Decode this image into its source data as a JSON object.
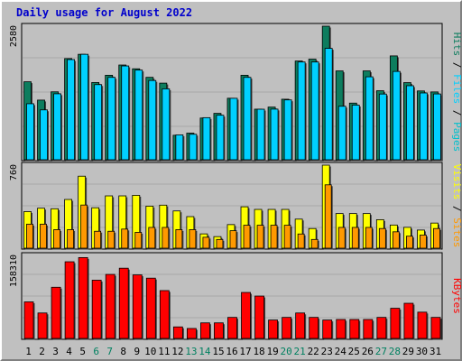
{
  "title": "Daily usage for August 2022",
  "colors": {
    "frame_bg": "#c0c0c0",
    "title": "#0000cc",
    "hits": "#0d7d5e",
    "files": "#00d0ff",
    "pages": "#00c0cc",
    "visits": "#ffff00",
    "sites": "#ff9900",
    "kbytes": "#ff0000",
    "day_weekday": "#000000",
    "day_weekend": "#008060"
  },
  "chart_data": [
    {
      "type": "bar",
      "name": "hits-files-pages",
      "categories": [
        "1",
        "2",
        "3",
        "4",
        "5",
        "6",
        "7",
        "8",
        "9",
        "10",
        "11",
        "12",
        "13",
        "14",
        "15",
        "16",
        "17",
        "18",
        "19",
        "20",
        "21",
        "22",
        "23",
        "24",
        "25",
        "26",
        "27",
        "28",
        "29",
        "30",
        "31"
      ],
      "weekend_days": [
        "6",
        "7",
        "13",
        "14",
        "20",
        "21",
        "27",
        "28"
      ],
      "ymax_label": "2580",
      "ylim": [
        0,
        2580
      ],
      "series": [
        {
          "name": "Hits",
          "values": [
            1506,
            1152,
            1312,
            1954,
            2037,
            1492,
            1632,
            1830,
            1757,
            1592,
            1480,
            473,
            514,
            806,
            896,
            1188,
            1632,
            977,
            1017,
            1169,
            1907,
            1943,
            2580,
            1716,
            1094,
            1716,
            1333,
            2006,
            1490,
            1329,
            1310
          ]
        },
        {
          "name": "Files",
          "values": [
            1082,
            963,
            1274,
            1935,
            2037,
            1451,
            1591,
            1812,
            1732,
            1531,
            1370,
            480,
            492,
            813,
            860,
            1187,
            1591,
            976,
            978,
            1156,
            1888,
            1888,
            2151,
            1033,
            1055,
            1602,
            1269,
            1706,
            1430,
            1290,
            1271
          ]
        },
        {
          "name": "Pages",
          "values": [
            0,
            0,
            0,
            0,
            0,
            0,
            0,
            0,
            0,
            0,
            0,
            0,
            0,
            0,
            0,
            0,
            0,
            0,
            0,
            0,
            0,
            0,
            0,
            0,
            0,
            0,
            0,
            0,
            0,
            0,
            0
          ]
        }
      ]
    },
    {
      "type": "bar",
      "name": "visits-sites",
      "ymax_label": "760",
      "ylim": [
        0,
        760
      ],
      "series": [
        {
          "name": "Visits",
          "values": [
            335,
            366,
            361,
            446,
            659,
            370,
            479,
            479,
            484,
            385,
            394,
            341,
            289,
            131,
            106,
            216,
            379,
            355,
            355,
            355,
            266,
            180,
            760,
            317,
            317,
            317,
            261,
            212,
            191,
            166,
            230
          ]
        },
        {
          "name": "Sites",
          "values": [
            220,
            220,
            170,
            170,
            395,
            155,
            155,
            175,
            145,
            190,
            190,
            170,
            170,
            100,
            80,
            160,
            210,
            210,
            210,
            210,
            130,
            80,
            580,
            190,
            190,
            190,
            180,
            150,
            110,
            120,
            180
          ]
        }
      ]
    },
    {
      "type": "bar",
      "name": "kbytes",
      "ymax_label": "158310",
      "ylim": [
        0,
        158310
      ],
      "series": [
        {
          "name": "KBytes",
          "values": [
            69720,
            48550,
            97600,
            146200,
            154200,
            111050,
            122100,
            133900,
            121200,
            114950,
            91250,
            22000,
            19000,
            29700,
            29700,
            40150,
            87700,
            80800,
            35100,
            40150,
            48550,
            40150,
            35100,
            36150,
            36150,
            36150,
            40150,
            57550,
            67050,
            50150,
            40150
          ]
        }
      ]
    }
  ],
  "legends": {
    "top": [
      {
        "text": "Hits",
        "color": "#0d7d5e"
      },
      {
        "text": " / ",
        "color": "#000000"
      },
      {
        "text": "Files",
        "color": "#00d0ff"
      },
      {
        "text": " / ",
        "color": "#000000"
      },
      {
        "text": "Pages",
        "color": "#00c0cc"
      }
    ],
    "middle": [
      {
        "text": "Visits",
        "color": "#ffff00"
      },
      {
        "text": " / ",
        "color": "#000000"
      },
      {
        "text": "Sites",
        "color": "#ff9900"
      }
    ],
    "bottom": [
      {
        "text": "KBytes",
        "color": "#ff0000"
      }
    ]
  }
}
